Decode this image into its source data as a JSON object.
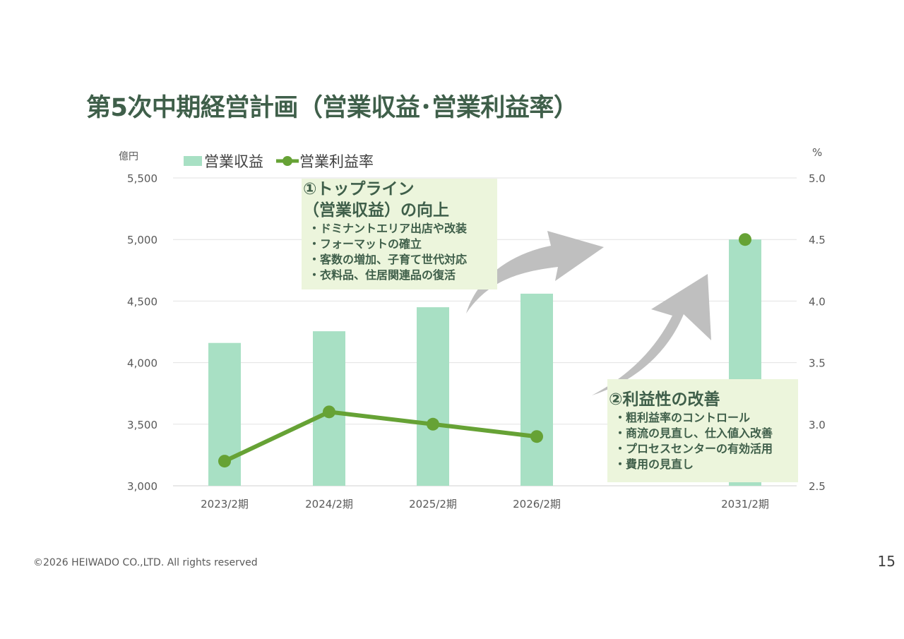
{
  "title": "第5次中期経営計画（営業収益･営業利益率）",
  "chart_data": {
    "type": "bar",
    "categories": [
      "2023/2期",
      "2024/2期",
      "2025/2期",
      "2026/2期",
      "2031/2期"
    ],
    "series": [
      {
        "name": "営業収益",
        "type": "bar",
        "axis": "left",
        "color": "#a8e0c4",
        "values": [
          4160,
          4255,
          4450,
          4560,
          5000
        ]
      },
      {
        "name": "営業利益率",
        "type": "line",
        "axis": "right",
        "color": "#66a235",
        "values": [
          2.7,
          3.1,
          3.0,
          2.9,
          4.5
        ]
      }
    ],
    "left_axis": {
      "unit_label": "億円",
      "ylim": [
        3000,
        5500
      ],
      "ticks": [
        "3,000",
        "3,500",
        "4,000",
        "4,500",
        "5,000",
        "5,500"
      ]
    },
    "right_axis": {
      "unit_label": "%",
      "ylim": [
        2.5,
        5.0
      ],
      "ticks": [
        "2.5",
        "3.0",
        "3.5",
        "4.0",
        "4.5",
        "5.0"
      ]
    },
    "grid": true,
    "legend_position": "top-left"
  },
  "callout1": {
    "heading_line1": "①トップライン",
    "heading_line2": "（営業収益）の向上",
    "items": [
      "ドミナントエリア出店や改装",
      "フォーマットの確立",
      "客数の増加、子育て世代対応",
      "衣料品、住居関連品の復活"
    ]
  },
  "callout2": {
    "heading": "②利益性の改善",
    "items": [
      "粗利益率のコントロール",
      "商流の見直し、仕入値入改善",
      "プロセスセンターの有効活用",
      "費用の見直し"
    ]
  },
  "footer": "©2026  HEIWADO CO.,LTD.  All rights reserved",
  "page_number": "15",
  "colors": {
    "title": "#3f5f4a",
    "bar": "#a8e0c4",
    "line": "#66a235",
    "callout_bg": "#ecf5dc",
    "arrow": "#bfbfbf"
  }
}
